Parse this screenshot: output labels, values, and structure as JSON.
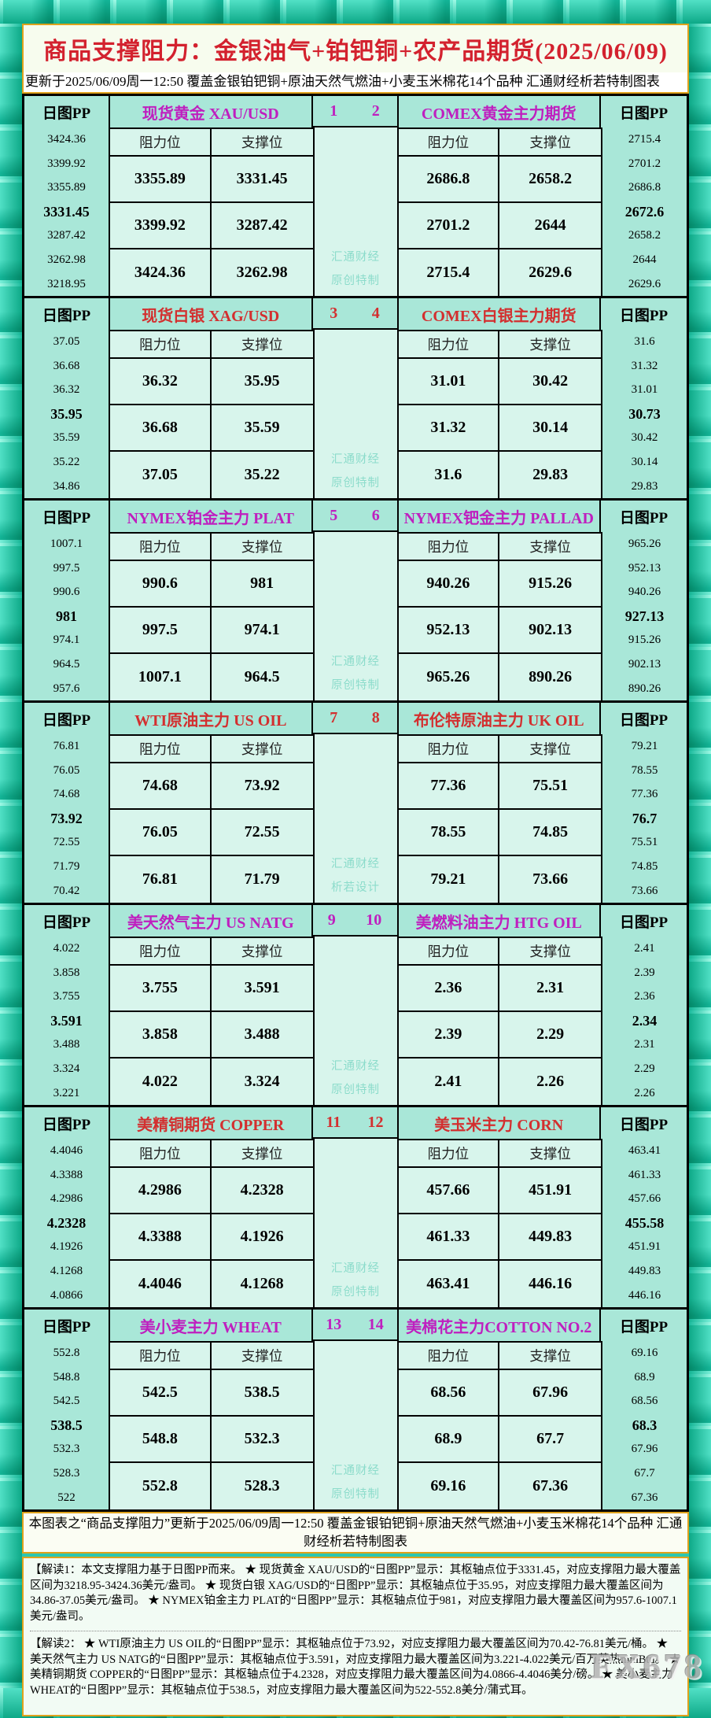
{
  "page": {
    "title": "商品支撑阻力：金银油气+铂钯铜+农产品期货(2025/06/09)",
    "subtitle": "更新于2025/06/09周一12:50 覆盖金银铂钯铜+原油天然气燃油+小麦玉米棉花14个品种 汇通财经析若特制图表",
    "bottom_note": "本图表之“商品支撑阻力”更新于2025/06/09周一12:50 覆盖金银铂钯铜+原油天然气燃油+小麦玉米棉花14个品种 汇通财经析若特制图表",
    "interpretation1": "【解读1：本文支撑阻力基于日图PP而来。 ★ 现货黄金 XAU/USD的“日图PP”显示：其枢轴点位于3331.45，对应支撑阻力最大覆盖区间为3218.95-3424.36美元/盎司。 ★ 现货白银 XAG/USD的“日图PP”显示：其枢轴点位于35.95，对应支撑阻力最大覆盖区间为34.86-37.05美元/盎司。 ★ NYMEX铂金主力 PLAT的“日图PP”显示：其枢轴点位于981，对应支撑阻力最大覆盖区间为957.6-1007.1美元/盎司。",
    "interpretation2": "【解读2： ★ WTI原油主力 US OIL的“日图PP”显示：其枢轴点位于73.92，对应支撑阻力最大覆盖区间为70.42-76.81美元/桶。 ★ 美天然气主力 US NATG的“日图PP”显示：其枢轴点位于3.591，对应支撑阻力最大覆盖区间为3.221-4.022美元/百万英热mmBtu。 ★ 美精铜期货 COPPER的“日图PP”显示：其枢轴点位于4.2328，对应支撑阻力最大覆盖区间为4.0866-4.4046美分/磅。 ★ 美小麦主力 WHEAT的“日图PP”显示：其枢轴点位于538.5，对应支撑阻力最大覆盖区间为522-552.8美分/蒲式耳。",
    "watermark": "FX678",
    "colors": {
      "magenta": "#bf1fbf",
      "red": "#d32f2f",
      "title_red": "#d3212e"
    }
  },
  "chart_data": {
    "type": "table",
    "title": "商品支撑阻力：金银油气+铂钯铜+农产品期货(2025/06/09)",
    "pp_label": "日图PP",
    "res_label": "阻力位",
    "sup_label": "支撑位",
    "sections": [
      {
        "nums": [
          "1",
          "2"
        ],
        "color": "magenta",
        "watermark": [
          "汇通财经",
          "原创特制"
        ],
        "left": {
          "title": "现货黄金 XAU/USD",
          "pp": [
            "3424.36",
            "3399.92",
            "3355.89",
            "3331.45",
            "3287.42",
            "3262.98",
            "3218.95"
          ],
          "rows": [
            [
              "3355.89",
              "3331.45"
            ],
            [
              "3399.92",
              "3287.42"
            ],
            [
              "3424.36",
              "3262.98"
            ]
          ]
        },
        "right": {
          "title": "COMEX黄金主力期货",
          "pp": [
            "2715.4",
            "2701.2",
            "2686.8",
            "2672.6",
            "2658.2",
            "2644",
            "2629.6"
          ],
          "rows": [
            [
              "2686.8",
              "2658.2"
            ],
            [
              "2701.2",
              "2644"
            ],
            [
              "2715.4",
              "2629.6"
            ]
          ]
        }
      },
      {
        "nums": [
          "3",
          "4"
        ],
        "color": "red",
        "watermark": [
          "汇通财经",
          "原创特制"
        ],
        "left": {
          "title": "现货白银 XAG/USD",
          "pp": [
            "37.05",
            "36.68",
            "36.32",
            "35.95",
            "35.59",
            "35.22",
            "34.86"
          ],
          "rows": [
            [
              "36.32",
              "35.95"
            ],
            [
              "36.68",
              "35.59"
            ],
            [
              "37.05",
              "35.22"
            ]
          ]
        },
        "right": {
          "title": "COMEX白银主力期货",
          "pp": [
            "31.6",
            "31.32",
            "31.01",
            "30.73",
            "30.42",
            "30.14",
            "29.83"
          ],
          "rows": [
            [
              "31.01",
              "30.42"
            ],
            [
              "31.32",
              "30.14"
            ],
            [
              "31.6",
              "29.83"
            ]
          ]
        }
      },
      {
        "nums": [
          "5",
          "6"
        ],
        "color": "magenta",
        "watermark": [
          "汇通财经",
          "原创特制"
        ],
        "left": {
          "title": "NYMEX铂金主力 PLAT",
          "pp": [
            "1007.1",
            "997.5",
            "990.6",
            "981",
            "974.1",
            "964.5",
            "957.6"
          ],
          "rows": [
            [
              "990.6",
              "981"
            ],
            [
              "997.5",
              "974.1"
            ],
            [
              "1007.1",
              "964.5"
            ]
          ]
        },
        "right": {
          "title": "NYMEX钯金主力 PALLAD",
          "pp": [
            "965.26",
            "952.13",
            "940.26",
            "927.13",
            "915.26",
            "902.13",
            "890.26"
          ],
          "rows": [
            [
              "940.26",
              "915.26"
            ],
            [
              "952.13",
              "902.13"
            ],
            [
              "965.26",
              "890.26"
            ]
          ]
        }
      },
      {
        "nums": [
          "7",
          "8"
        ],
        "color": "red",
        "watermark": [
          "汇通财经",
          "析若设计"
        ],
        "left": {
          "title": "WTI原油主力 US OIL",
          "pp": [
            "76.81",
            "76.05",
            "74.68",
            "73.92",
            "72.55",
            "71.79",
            "70.42"
          ],
          "rows": [
            [
              "74.68",
              "73.92"
            ],
            [
              "76.05",
              "72.55"
            ],
            [
              "76.81",
              "71.79"
            ]
          ]
        },
        "right": {
          "title": "布伦特原油主力 UK OIL",
          "pp": [
            "79.21",
            "78.55",
            "77.36",
            "76.7",
            "75.51",
            "74.85",
            "73.66"
          ],
          "rows": [
            [
              "77.36",
              "75.51"
            ],
            [
              "78.55",
              "74.85"
            ],
            [
              "79.21",
              "73.66"
            ]
          ]
        }
      },
      {
        "nums": [
          "9",
          "10"
        ],
        "color": "magenta",
        "watermark": [
          "汇通财经",
          "原创特制"
        ],
        "left": {
          "title": "美天然气主力 US NATG",
          "pp": [
            "4.022",
            "3.858",
            "3.755",
            "3.591",
            "3.488",
            "3.324",
            "3.221"
          ],
          "rows": [
            [
              "3.755",
              "3.591"
            ],
            [
              "3.858",
              "3.488"
            ],
            [
              "4.022",
              "3.324"
            ]
          ]
        },
        "right": {
          "title": "美燃料油主力 HTG OIL",
          "pp": [
            "2.41",
            "2.39",
            "2.36",
            "2.34",
            "2.31",
            "2.29",
            "2.26"
          ],
          "rows": [
            [
              "2.36",
              "2.31"
            ],
            [
              "2.39",
              "2.29"
            ],
            [
              "2.41",
              "2.26"
            ]
          ]
        }
      },
      {
        "nums": [
          "11",
          "12"
        ],
        "color": "red",
        "watermark": [
          "汇通财经",
          "原创特制"
        ],
        "left": {
          "title": "美精铜期货 COPPER",
          "pp": [
            "4.4046",
            "4.3388",
            "4.2986",
            "4.2328",
            "4.1926",
            "4.1268",
            "4.0866"
          ],
          "rows": [
            [
              "4.2986",
              "4.2328"
            ],
            [
              "4.3388",
              "4.1926"
            ],
            [
              "4.4046",
              "4.1268"
            ]
          ]
        },
        "right": {
          "title": "美玉米主力 CORN",
          "pp": [
            "463.41",
            "461.33",
            "457.66",
            "455.58",
            "451.91",
            "449.83",
            "446.16"
          ],
          "rows": [
            [
              "457.66",
              "451.91"
            ],
            [
              "461.33",
              "449.83"
            ],
            [
              "463.41",
              "446.16"
            ]
          ]
        }
      },
      {
        "nums": [
          "13",
          "14"
        ],
        "color": "magenta",
        "watermark": [
          "汇通财经",
          "原创特制"
        ],
        "left": {
          "title": "美小麦主力 WHEAT",
          "pp": [
            "552.8",
            "548.8",
            "542.5",
            "538.5",
            "532.3",
            "528.3",
            "522"
          ],
          "rows": [
            [
              "542.5",
              "538.5"
            ],
            [
              "548.8",
              "532.3"
            ],
            [
              "552.8",
              "528.3"
            ]
          ]
        },
        "right": {
          "title": "美棉花主力COTTON NO.2",
          "pp": [
            "69.16",
            "68.9",
            "68.56",
            "68.3",
            "67.96",
            "67.7",
            "67.36"
          ],
          "rows": [
            [
              "68.56",
              "67.96"
            ],
            [
              "68.9",
              "67.7"
            ],
            [
              "69.16",
              "67.36"
            ]
          ]
        }
      }
    ]
  }
}
